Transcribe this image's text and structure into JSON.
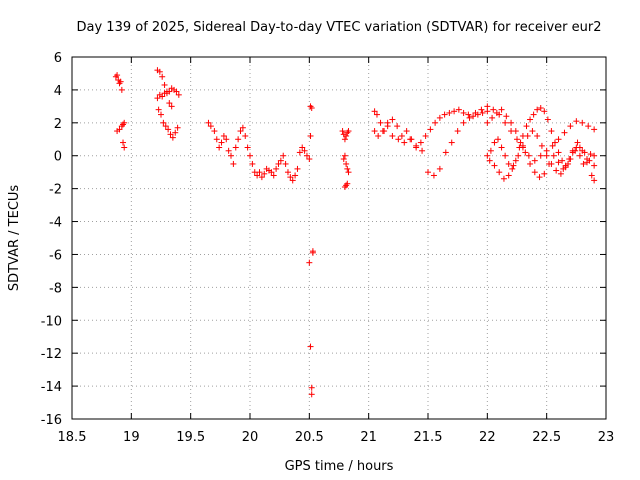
{
  "chart_data": {
    "type": "scatter",
    "title": "Day 139 of 2025, Sidereal Day-to-day VTEC variation (SDTVAR) for receiver eur2",
    "xlabel": "GPS time / hours",
    "ylabel": "SDTVAR / TECUs",
    "xlim": [
      18.5,
      23
    ],
    "ylim": [
      -16,
      6
    ],
    "xticks": [
      18.5,
      19,
      19.5,
      20,
      20.5,
      21,
      21.5,
      22,
      22.5,
      23
    ],
    "yticks": [
      -16,
      -14,
      -12,
      -10,
      -8,
      -6,
      -4,
      -2,
      0,
      2,
      4,
      6
    ],
    "xtick_labels": [
      "18.5",
      "19",
      "19.5",
      "20",
      "20.5",
      "21",
      "21.5",
      "22",
      "22.5",
      "23"
    ],
    "ytick_labels": [
      "-16",
      "-14",
      "-12",
      "-10",
      "-8",
      "-6",
      "-4",
      "-2",
      "0",
      "2",
      "4",
      "6"
    ],
    "grid": true,
    "marker": "+",
    "color": "#ff0000",
    "series": [
      {
        "name": "sdtvar",
        "x": [
          18.87,
          18.88,
          18.89,
          18.9,
          18.91,
          18.92,
          18.88,
          18.9,
          18.92,
          18.93,
          18.94,
          18.93,
          18.94,
          19.22,
          19.24,
          19.26,
          19.28,
          19.3,
          19.32,
          19.34,
          19.36,
          19.38,
          19.4,
          19.23,
          19.25,
          19.27,
          19.29,
          19.31,
          19.33,
          19.35,
          19.37,
          19.39,
          19.22,
          19.24,
          19.26,
          19.28,
          19.3,
          19.32,
          19.34,
          19.65,
          19.67,
          19.7,
          19.72,
          19.74,
          19.76,
          19.78,
          19.8,
          19.82,
          19.84,
          19.86,
          19.88,
          19.9,
          19.92,
          19.94,
          19.96,
          19.98,
          20.0,
          20.02,
          20.04,
          20.06,
          20.08,
          20.1,
          20.12,
          20.14,
          20.16,
          20.18,
          20.2,
          20.22,
          20.24,
          20.26,
          20.28,
          20.3,
          20.32,
          20.34,
          20.36,
          20.38,
          20.4,
          20.42,
          20.44,
          20.46,
          20.48,
          20.5,
          20.5,
          20.51,
          20.52,
          20.52,
          20.53,
          20.53,
          20.51,
          20.52,
          20.51,
          20.78,
          20.79,
          20.8,
          20.81,
          20.82,
          20.83,
          20.79,
          20.8,
          20.81,
          20.82,
          20.83,
          20.8,
          20.81,
          20.82,
          21.05,
          21.07,
          21.1,
          21.13,
          21.16,
          21.2,
          21.24,
          21.28,
          21.32,
          21.36,
          21.4,
          21.44,
          21.48,
          21.52,
          21.56,
          21.6,
          21.64,
          21.68,
          21.72,
          21.76,
          21.8,
          21.84,
          21.88,
          21.92,
          21.96,
          22.0,
          21.05,
          21.08,
          21.12,
          21.16,
          21.2,
          21.25,
          21.3,
          21.35,
          21.4,
          21.45,
          21.5,
          21.55,
          21.6,
          21.65,
          21.7,
          21.75,
          21.8,
          21.85,
          21.9,
          21.95,
          22.0,
          22.05,
          22.1,
          22.15,
          22.2,
          22.25,
          22.3,
          22.35,
          22.4,
          22.45,
          22.5,
          22.55,
          22.6,
          22.65,
          22.7,
          22.75,
          22.8,
          22.85,
          22.9,
          22.0,
          22.03,
          22.06,
          22.09,
          22.12,
          22.15,
          22.18,
          22.21,
          22.24,
          22.27,
          22.3,
          22.33,
          22.36,
          22.39,
          22.42,
          22.45,
          22.48,
          22.51,
          22.54,
          22.57,
          22.6,
          22.63,
          22.66,
          22.69,
          22.72,
          22.75,
          22.78,
          22.81,
          22.84,
          22.87,
          22.9,
          22.0,
          22.04,
          22.08,
          22.12,
          22.16,
          22.2,
          22.24,
          22.28,
          22.32,
          22.36,
          22.4,
          22.44,
          22.48,
          22.52,
          22.56,
          22.6,
          22.64,
          22.68,
          22.72,
          22.76,
          22.8,
          22.84,
          22.88,
          22.9,
          22.02,
          22.06,
          22.1,
          22.14,
          22.18,
          22.22,
          22.26,
          22.3,
          22.34,
          22.38,
          22.42,
          22.46,
          22.5,
          22.54,
          22.58,
          22.62,
          22.66,
          22.7,
          22.74,
          22.78,
          22.82,
          22.86,
          22.9
        ],
        "y": [
          4.8,
          4.9,
          4.6,
          4.4,
          4.5,
          4.0,
          1.5,
          1.6,
          1.8,
          1.9,
          2.0,
          0.8,
          0.5,
          5.2,
          5.1,
          4.8,
          4.3,
          3.8,
          3.9,
          4.1,
          4.0,
          3.9,
          3.7,
          2.8,
          2.5,
          2.0,
          1.8,
          1.6,
          1.3,
          1.1,
          1.4,
          1.7,
          3.5,
          3.7,
          3.6,
          3.8,
          3.9,
          3.2,
          3.0,
          2.0,
          1.8,
          1.5,
          1.0,
          0.5,
          0.8,
          1.2,
          1.0,
          0.3,
          0.0,
          -0.5,
          0.5,
          1.0,
          1.5,
          1.7,
          1.2,
          0.5,
          0.0,
          -0.5,
          -1.0,
          -1.2,
          -1.0,
          -1.3,
          -1.1,
          -0.8,
          -0.9,
          -1.0,
          -1.2,
          -0.8,
          -0.5,
          -0.3,
          0.0,
          -0.5,
          -1.0,
          -1.3,
          -1.5,
          -1.2,
          -0.8,
          0.2,
          0.5,
          0.3,
          0.0,
          -0.2,
          -6.5,
          -11.6,
          -14.5,
          -14.1,
          -5.8,
          -5.9,
          1.2,
          2.9,
          3.0,
          1.5,
          1.3,
          1.0,
          1.2,
          1.4,
          1.5,
          -0.2,
          0.0,
          -0.5,
          -0.8,
          -1.0,
          -1.9,
          -1.8,
          -1.7,
          2.7,
          2.5,
          2.0,
          1.5,
          2.0,
          2.2,
          1.8,
          1.2,
          1.5,
          1.0,
          0.5,
          0.8,
          1.2,
          1.6,
          2.0,
          2.3,
          2.5,
          2.6,
          2.7,
          2.8,
          2.6,
          2.5,
          2.4,
          2.5,
          2.6,
          2.7,
          1.5,
          1.2,
          1.5,
          1.8,
          1.2,
          1.0,
          0.8,
          1.0,
          0.6,
          0.3,
          -1.0,
          -1.2,
          -0.8,
          0.2,
          0.8,
          1.5,
          2.0,
          2.3,
          2.6,
          2.8,
          3.0,
          2.8,
          2.5,
          2.0,
          1.5,
          1.0,
          0.5,
          0.0,
          -0.3,
          0.0,
          0.3,
          0.6,
          1.0,
          1.4,
          1.8,
          2.1,
          2.0,
          1.8,
          1.6,
          0.0,
          0.3,
          0.8,
          1.0,
          0.5,
          0.0,
          -0.5,
          -0.8,
          -0.3,
          0.5,
          1.2,
          1.8,
          2.2,
          2.5,
          2.8,
          2.9,
          2.7,
          2.2,
          1.5,
          0.8,
          0.2,
          -0.3,
          -0.6,
          -0.2,
          0.3,
          0.5,
          0.0,
          -0.5,
          -0.2,
          0.1,
          0.0,
          2.0,
          2.3,
          2.6,
          2.8,
          2.4,
          2.0,
          1.5,
          0.8,
          0.2,
          -0.5,
          -1.0,
          -1.3,
          -1.1,
          -0.5,
          0.0,
          -0.4,
          -0.8,
          -0.5,
          0.2,
          0.8,
          0.3,
          -0.4,
          -1.2,
          -1.5,
          -0.3,
          -0.6,
          -1.0,
          -1.4,
          -1.2,
          -0.6,
          0.0,
          0.6,
          1.2,
          1.5,
          1.2,
          0.6,
          0.0,
          -0.5,
          -0.9,
          -1.1,
          -0.7,
          -0.2,
          0.3,
          0.5,
          0.2,
          -0.3,
          -0.6
        ]
      }
    ]
  }
}
